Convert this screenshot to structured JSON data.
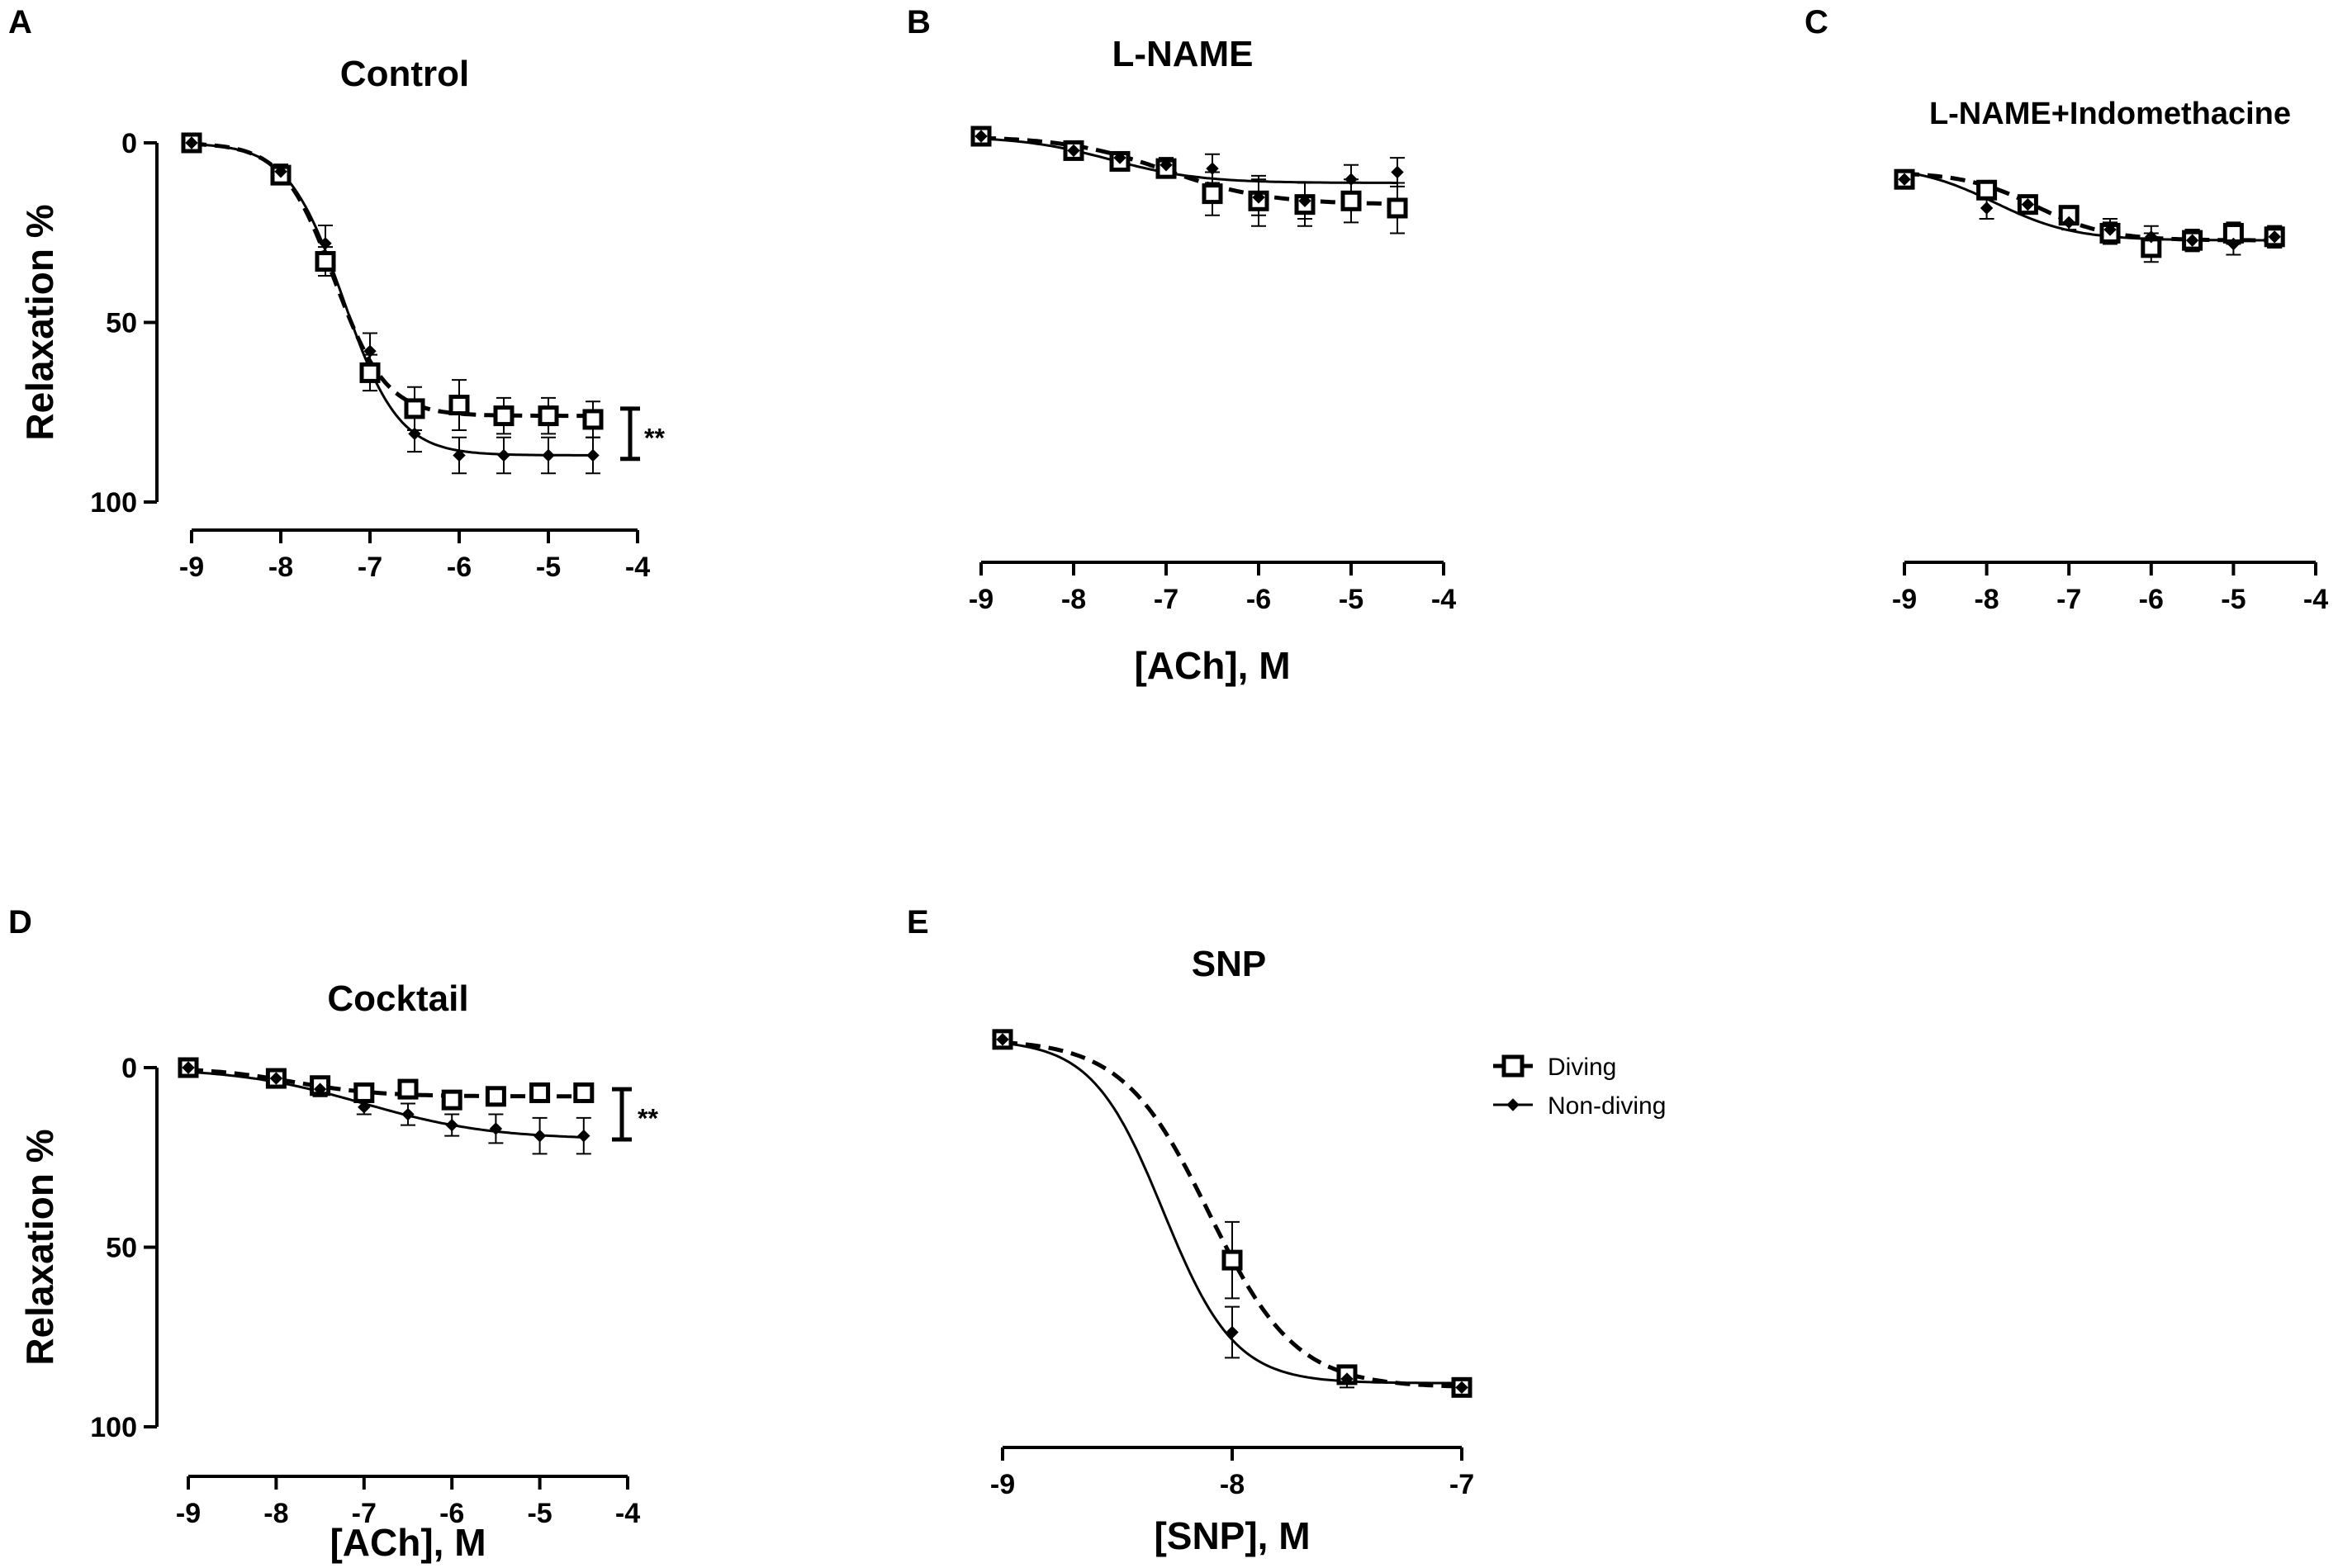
{
  "legend": {
    "diving": "Diving",
    "nondiving": "Non-diving"
  },
  "chart_data": [
    {
      "id": "A",
      "panel_letter": "A",
      "type": "line",
      "title": "Control",
      "xlabel": "",
      "ylabel": "Relaxation %",
      "xlim": [
        -9,
        -4
      ],
      "ylim": [
        0,
        100
      ],
      "y_inverted": true,
      "xticks": [
        -9,
        -8,
        -7,
        -6,
        -5,
        -4
      ],
      "xtick_labels": [
        "-9",
        "-8",
        "-7",
        "-6",
        "-5",
        "-4"
      ],
      "yticks": [
        0,
        50,
        100
      ],
      "ytick_labels": [
        "0",
        "50",
        "100"
      ],
      "significance": {
        "label": "**",
        "y_from": 74,
        "y_to": 88
      },
      "series": [
        {
          "name": "Diving",
          "style": "dashed",
          "marker": "open-square",
          "x": [
            -9,
            -8,
            -7.5,
            -7,
            -6.5,
            -6,
            -5.5,
            -5,
            -4.5
          ],
          "y": [
            0,
            9,
            33,
            64,
            74,
            73,
            76,
            76,
            77
          ],
          "err": [
            0,
            2,
            4,
            5,
            6,
            7,
            5,
            5,
            5
          ],
          "fit": {
            "bottom": 0,
            "top": 76,
            "ec50": -7.4,
            "hill": 1.5
          }
        },
        {
          "name": "Non-diving",
          "style": "solid",
          "marker": "filled-diamond",
          "x": [
            -9,
            -8,
            -7.5,
            -7,
            -6.5,
            -6,
            -5.5,
            -5,
            -4.5
          ],
          "y": [
            0,
            8,
            28,
            58,
            81,
            87,
            87,
            87,
            87
          ],
          "err": [
            0,
            2,
            5,
            5,
            5,
            5,
            5,
            5,
            5
          ],
          "fit": {
            "bottom": 0,
            "top": 87,
            "ec50": -7.3,
            "hill": 1.4
          }
        }
      ]
    },
    {
      "id": "B",
      "panel_letter": "B",
      "type": "line",
      "title": "L-NAME",
      "xlabel": "[ACh], M",
      "ylabel": "",
      "xlim": [
        -9,
        -4
      ],
      "ylim": [
        0,
        100
      ],
      "y_inverted": true,
      "xticks": [
        -9,
        -8,
        -7,
        -6,
        -5,
        -4
      ],
      "xtick_labels": [
        "-9",
        "-8",
        "-7",
        "-6",
        "-5",
        "-4"
      ],
      "series": [
        {
          "name": "Diving",
          "style": "dashed",
          "marker": "open-square",
          "x": [
            -9,
            -8,
            -7.5,
            -7,
            -6.5,
            -6,
            -5.5,
            -5,
            -4.5
          ],
          "y": [
            0,
            4,
            7,
            9,
            16,
            18,
            19,
            18,
            20
          ],
          "err": [
            0,
            1,
            1,
            2,
            6,
            7,
            6,
            6,
            7
          ],
          "fit": {
            "bottom": 0,
            "top": 19,
            "ec50": -7.0,
            "hill": 0.8
          }
        },
        {
          "name": "Non-diving",
          "style": "solid",
          "marker": "filled-diamond",
          "x": [
            -9,
            -8,
            -7.5,
            -7,
            -6.5,
            -6,
            -5.5,
            -5,
            -4.5
          ],
          "y": [
            0,
            4,
            6,
            8,
            9,
            17,
            18,
            12,
            10
          ],
          "err": [
            0,
            1,
            1,
            2,
            4,
            5,
            5,
            4,
            4
          ],
          "fit": {
            "bottom": 0,
            "top": 13,
            "ec50": -7.6,
            "hill": 0.9
          }
        }
      ]
    },
    {
      "id": "C",
      "panel_letter": "C",
      "type": "line",
      "title": "L-NAME+Indomethacine",
      "xlabel": "",
      "ylabel": "",
      "xlim": [
        -9,
        -4
      ],
      "ylim": [
        0,
        100
      ],
      "y_inverted": true,
      "xticks": [
        -9,
        -8,
        -7,
        -6,
        -5,
        -4
      ],
      "xtick_labels": [
        "-9",
        "-8",
        "-7",
        "-6",
        "-5",
        "-4"
      ],
      "series": [
        {
          "name": "Diving",
          "style": "dashed",
          "marker": "open-square",
          "x": [
            -9,
            -8,
            -7.5,
            -7,
            -6.5,
            -6,
            -5.5,
            -5,
            -4.5
          ],
          "y": [
            12,
            15,
            19,
            22,
            27,
            31,
            29,
            27,
            28
          ],
          "err": [
            0,
            1,
            1,
            2,
            3,
            4,
            3,
            3,
            3
          ],
          "fit": {
            "bottom": 10,
            "top": 29,
            "ec50": -7.4,
            "hill": 1.0
          }
        },
        {
          "name": "Non-diving",
          "style": "solid",
          "marker": "filled-diamond",
          "x": [
            -9,
            -8,
            -7.5,
            -7,
            -6.5,
            -6,
            -5.5,
            -5,
            -4.5
          ],
          "y": [
            12,
            20,
            19,
            24,
            26,
            28,
            29,
            30,
            28
          ],
          "err": [
            0,
            3,
            2,
            2,
            3,
            3,
            3,
            3,
            3
          ],
          "fit": {
            "bottom": 8,
            "top": 29,
            "ec50": -7.9,
            "hill": 0.9
          }
        }
      ]
    },
    {
      "id": "D",
      "panel_letter": "D",
      "type": "line",
      "title": "Cocktail",
      "xlabel": "[ACh], M",
      "ylabel": "Relaxation %",
      "xlim": [
        -9,
        -4
      ],
      "ylim": [
        0,
        100
      ],
      "y_inverted": true,
      "xticks": [
        -9,
        -8,
        -7,
        -6,
        -5,
        -4
      ],
      "xtick_labels": [
        "-9",
        "-8",
        "-7",
        "-6",
        "-5",
        "-4"
      ],
      "yticks": [
        0,
        50,
        100
      ],
      "ytick_labels": [
        "0",
        "50",
        "100"
      ],
      "significance": {
        "label": "**",
        "y_from": 6,
        "y_to": 20
      },
      "series": [
        {
          "name": "Diving",
          "style": "dashed",
          "marker": "open-square",
          "x": [
            -9,
            -8,
            -7.5,
            -7,
            -6.5,
            -6,
            -5.5,
            -5,
            -4.5
          ],
          "y": [
            0,
            3,
            5,
            7,
            6,
            9,
            8,
            7,
            7
          ],
          "err": [
            0,
            1,
            1,
            1,
            1,
            2,
            2,
            2,
            2
          ],
          "fit": {
            "bottom": 0,
            "top": 8,
            "ec50": -7.8,
            "hill": 0.9
          }
        },
        {
          "name": "Non-diving",
          "style": "solid",
          "marker": "filled-diamond",
          "x": [
            -9,
            -8,
            -7.5,
            -7,
            -6.5,
            -6,
            -5.5,
            -5,
            -4.5
          ],
          "y": [
            0,
            3,
            6,
            11,
            13,
            16,
            17,
            19,
            19
          ],
          "err": [
            0,
            1,
            2,
            2,
            3,
            3,
            4,
            5,
            5
          ],
          "fit": {
            "bottom": 0,
            "top": 20,
            "ec50": -7.0,
            "hill": 0.6
          }
        }
      ]
    },
    {
      "id": "E",
      "panel_letter": "E",
      "type": "line",
      "title": "SNP",
      "xlabel": "[SNP], M",
      "ylabel": "",
      "xlim": [
        -9,
        -7
      ],
      "ylim": [
        0,
        100
      ],
      "y_inverted": true,
      "xticks": [
        -9,
        -8,
        -7
      ],
      "xtick_labels": [
        "-9",
        "-8",
        "-7"
      ],
      "series": [
        {
          "name": "Diving",
          "style": "dashed",
          "marker": "open-square",
          "x": [
            -9,
            -8,
            -7.5,
            -7
          ],
          "y": [
            6,
            58,
            85,
            88
          ],
          "err": [
            0,
            9,
            2,
            1
          ],
          "fit": {
            "bottom": 6,
            "top": 88,
            "ec50": -8.1,
            "hill": 2.3
          }
        },
        {
          "name": "Non-diving",
          "style": "solid",
          "marker": "filled-diamond",
          "x": [
            -9,
            -8,
            -7.5,
            -7
          ],
          "y": [
            6,
            75,
            86,
            88
          ],
          "err": [
            0,
            6,
            2,
            1
          ],
          "fit": {
            "bottom": 6,
            "top": 87,
            "ec50": -8.3,
            "hill": 2.8
          }
        }
      ]
    }
  ]
}
